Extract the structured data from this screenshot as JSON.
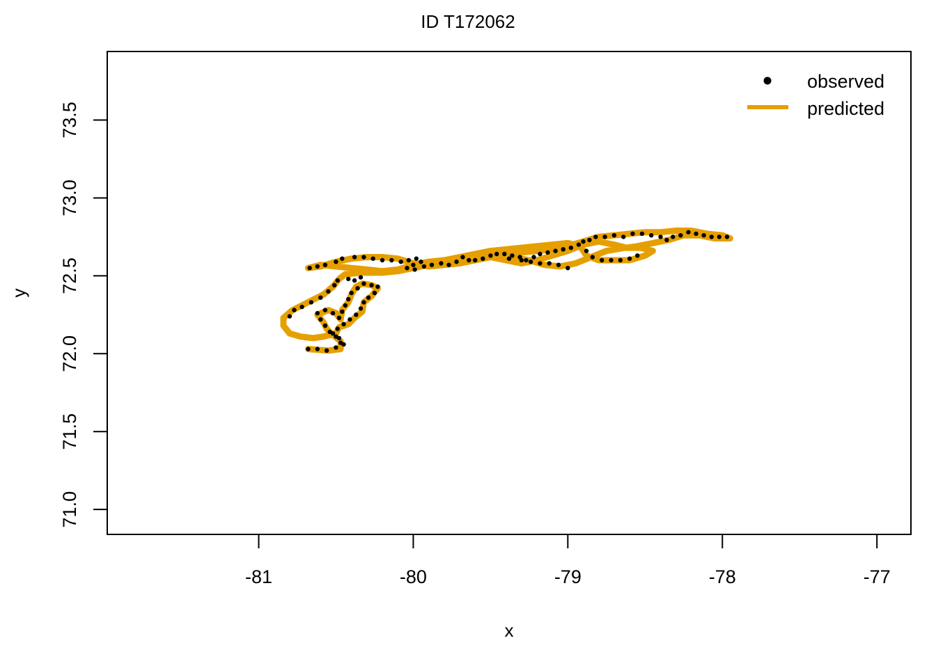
{
  "chart_data": {
    "type": "scatter",
    "title": "ID T172062",
    "xlabel": "x",
    "ylabel": "y",
    "xlim": [
      -81.98,
      -76.78
    ],
    "ylim": [
      70.84,
      73.94
    ],
    "xticks": [
      -81,
      -80,
      -79,
      -78,
      -77
    ],
    "xtick_labels": [
      "-81",
      "-80",
      "-79",
      "-78",
      "-77"
    ],
    "yticks": [
      71.0,
      71.5,
      72.0,
      72.5,
      73.0,
      73.5
    ],
    "ytick_labels": [
      "71.0",
      "71.5",
      "72.0",
      "72.5",
      "73.0",
      "73.5"
    ],
    "grid": false,
    "legend_position": "top-right",
    "legend": [
      {
        "label": "observed",
        "marker": "point",
        "color": "#000000"
      },
      {
        "label": "predicted",
        "marker": "line",
        "color": "#E69F00"
      }
    ],
    "series": [
      {
        "name": "predicted",
        "kind": "line",
        "color": "#E69F00",
        "points": [
          [
            -80.68,
            72.03
          ],
          [
            -80.55,
            72.02
          ],
          [
            -80.47,
            72.03
          ],
          [
            -80.47,
            72.08
          ],
          [
            -80.52,
            72.12
          ],
          [
            -80.56,
            72.16
          ],
          [
            -80.58,
            72.2
          ],
          [
            -80.62,
            72.25
          ],
          [
            -80.55,
            72.28
          ],
          [
            -80.5,
            72.26
          ],
          [
            -80.47,
            72.22
          ],
          [
            -80.46,
            72.28
          ],
          [
            -80.42,
            72.33
          ],
          [
            -80.4,
            72.38
          ],
          [
            -80.37,
            72.43
          ],
          [
            -80.33,
            72.45
          ],
          [
            -80.27,
            72.44
          ],
          [
            -80.23,
            72.42
          ],
          [
            -80.27,
            72.37
          ],
          [
            -80.32,
            72.33
          ],
          [
            -80.33,
            72.27
          ],
          [
            -80.38,
            72.23
          ],
          [
            -80.42,
            72.19
          ],
          [
            -80.48,
            72.17
          ],
          [
            -80.5,
            72.13
          ],
          [
            -80.58,
            72.11
          ],
          [
            -80.65,
            72.1
          ],
          [
            -80.73,
            72.11
          ],
          [
            -80.8,
            72.13
          ],
          [
            -80.84,
            72.18
          ],
          [
            -80.84,
            72.23
          ],
          [
            -80.78,
            72.28
          ],
          [
            -80.68,
            72.33
          ],
          [
            -80.58,
            72.38
          ],
          [
            -80.52,
            72.43
          ],
          [
            -80.48,
            72.48
          ],
          [
            -80.44,
            72.51
          ],
          [
            -80.34,
            72.52
          ],
          [
            -80.2,
            72.52
          ],
          [
            -80.1,
            72.53
          ],
          [
            -80.0,
            72.55
          ],
          [
            -79.9,
            72.57
          ],
          [
            -79.8,
            72.57
          ],
          [
            -79.7,
            72.58
          ],
          [
            -79.6,
            72.6
          ],
          [
            -79.5,
            72.63
          ],
          [
            -79.4,
            72.64
          ],
          [
            -79.3,
            72.65
          ],
          [
            -79.2,
            72.66
          ],
          [
            -79.1,
            72.67
          ],
          [
            -79.0,
            72.69
          ],
          [
            -78.9,
            72.72
          ],
          [
            -78.8,
            72.75
          ],
          [
            -78.7,
            72.76
          ],
          [
            -78.6,
            72.77
          ],
          [
            -78.5,
            72.78
          ],
          [
            -78.4,
            72.78
          ],
          [
            -78.3,
            72.79
          ],
          [
            -78.2,
            72.79
          ],
          [
            -78.1,
            72.77
          ],
          [
            -78.0,
            72.76
          ],
          [
            -77.95,
            72.74
          ],
          [
            -78.05,
            72.74
          ],
          [
            -78.15,
            72.76
          ],
          [
            -78.25,
            72.76
          ],
          [
            -78.35,
            72.73
          ],
          [
            -78.45,
            72.71
          ],
          [
            -78.55,
            72.69
          ],
          [
            -78.62,
            72.68
          ],
          [
            -78.7,
            72.7
          ],
          [
            -78.8,
            72.72
          ],
          [
            -78.9,
            72.7
          ],
          [
            -79.0,
            72.66
          ],
          [
            -79.1,
            72.63
          ],
          [
            -79.2,
            72.6
          ],
          [
            -79.3,
            72.58
          ],
          [
            -79.4,
            72.6
          ],
          [
            -79.5,
            72.62
          ],
          [
            -79.6,
            72.6
          ],
          [
            -79.7,
            72.59
          ],
          [
            -79.8,
            72.57
          ],
          [
            -79.9,
            72.56
          ],
          [
            -80.0,
            72.58
          ],
          [
            -80.1,
            72.61
          ],
          [
            -80.2,
            72.62
          ],
          [
            -80.3,
            72.62
          ],
          [
            -80.4,
            72.61
          ],
          [
            -80.5,
            72.59
          ],
          [
            -80.6,
            72.56
          ],
          [
            -80.68,
            72.55
          ],
          [
            -80.6,
            72.57
          ],
          [
            -80.5,
            72.56
          ],
          [
            -80.4,
            72.55
          ],
          [
            -80.3,
            72.54
          ],
          [
            -80.2,
            72.53
          ],
          [
            -80.1,
            72.54
          ],
          [
            -80.0,
            72.57
          ],
          [
            -79.9,
            72.59
          ],
          [
            -79.8,
            72.6
          ],
          [
            -79.7,
            72.62
          ],
          [
            -79.6,
            72.64
          ],
          [
            -79.5,
            72.66
          ],
          [
            -79.4,
            72.67
          ],
          [
            -79.3,
            72.68
          ],
          [
            -79.2,
            72.69
          ],
          [
            -79.1,
            72.7
          ],
          [
            -79.0,
            72.71
          ],
          [
            -78.92,
            72.69
          ],
          [
            -78.88,
            72.63
          ],
          [
            -78.8,
            72.6
          ],
          [
            -78.7,
            72.6
          ],
          [
            -78.6,
            72.6
          ],
          [
            -78.5,
            72.63
          ],
          [
            -78.45,
            72.66
          ],
          [
            -78.53,
            72.68
          ],
          [
            -78.63,
            72.68
          ],
          [
            -78.75,
            72.66
          ],
          [
            -78.85,
            72.62
          ],
          [
            -78.95,
            72.58
          ],
          [
            -79.05,
            72.56
          ],
          [
            -79.15,
            72.57
          ],
          [
            -79.25,
            72.6
          ],
          [
            -79.35,
            72.62
          ]
        ]
      },
      {
        "name": "observed",
        "kind": "points",
        "color": "#000000",
        "points": [
          [
            -80.68,
            72.03
          ],
          [
            -80.62,
            72.03
          ],
          [
            -80.56,
            72.02
          ],
          [
            -80.5,
            72.04
          ],
          [
            -80.47,
            72.07
          ],
          [
            -80.5,
            72.11
          ],
          [
            -80.54,
            72.14
          ],
          [
            -80.57,
            72.18
          ],
          [
            -80.6,
            72.22
          ],
          [
            -80.62,
            72.26
          ],
          [
            -80.57,
            72.28
          ],
          [
            -80.52,
            72.26
          ],
          [
            -80.48,
            72.23
          ],
          [
            -80.46,
            72.27
          ],
          [
            -80.44,
            72.31
          ],
          [
            -80.42,
            72.35
          ],
          [
            -80.4,
            72.39
          ],
          [
            -80.36,
            72.42
          ],
          [
            -80.32,
            72.45
          ],
          [
            -80.27,
            72.44
          ],
          [
            -80.23,
            72.43
          ],
          [
            -80.25,
            72.39
          ],
          [
            -80.29,
            72.36
          ],
          [
            -80.32,
            72.33
          ],
          [
            -80.34,
            72.29
          ],
          [
            -80.37,
            72.25
          ],
          [
            -80.41,
            72.22
          ],
          [
            -80.45,
            72.19
          ],
          [
            -80.49,
            72.16
          ],
          [
            -80.52,
            72.13
          ],
          [
            -80.48,
            72.1
          ],
          [
            -80.45,
            72.06
          ],
          [
            -80.8,
            72.24
          ],
          [
            -80.77,
            72.28
          ],
          [
            -80.72,
            72.3
          ],
          [
            -80.66,
            72.33
          ],
          [
            -80.6,
            72.36
          ],
          [
            -80.55,
            72.4
          ],
          [
            -80.51,
            72.44
          ],
          [
            -80.49,
            72.47
          ],
          [
            -80.42,
            72.48
          ],
          [
            -80.38,
            72.47
          ],
          [
            -80.34,
            72.49
          ],
          [
            -80.67,
            72.55
          ],
          [
            -80.62,
            72.56
          ],
          [
            -80.57,
            72.57
          ],
          [
            -80.5,
            72.59
          ],
          [
            -80.46,
            72.61
          ],
          [
            -80.38,
            72.62
          ],
          [
            -80.32,
            72.62
          ],
          [
            -80.26,
            72.61
          ],
          [
            -80.2,
            72.6
          ],
          [
            -80.14,
            72.6
          ],
          [
            -80.08,
            72.59
          ],
          [
            -80.03,
            72.6
          ],
          [
            -79.98,
            72.61
          ],
          [
            -79.95,
            72.59
          ],
          [
            -80.0,
            72.57
          ],
          [
            -80.04,
            72.55
          ],
          [
            -79.99,
            72.54
          ],
          [
            -79.93,
            72.56
          ],
          [
            -79.88,
            72.57
          ],
          [
            -79.82,
            72.58
          ],
          [
            -79.77,
            72.57
          ],
          [
            -79.72,
            72.59
          ],
          [
            -79.68,
            72.62
          ],
          [
            -79.64,
            72.6
          ],
          [
            -79.6,
            72.6
          ],
          [
            -79.55,
            72.61
          ],
          [
            -79.5,
            72.63
          ],
          [
            -79.46,
            72.64
          ],
          [
            -79.41,
            72.64
          ],
          [
            -79.36,
            72.63
          ],
          [
            -79.31,
            72.62
          ],
          [
            -79.27,
            72.6
          ],
          [
            -79.22,
            72.62
          ],
          [
            -79.18,
            72.64
          ],
          [
            -79.13,
            72.65
          ],
          [
            -79.08,
            72.66
          ],
          [
            -79.03,
            72.67
          ],
          [
            -78.98,
            72.68
          ],
          [
            -78.93,
            72.7
          ],
          [
            -78.9,
            72.72
          ],
          [
            -78.86,
            72.73
          ],
          [
            -78.82,
            72.75
          ],
          [
            -78.76,
            72.75
          ],
          [
            -78.7,
            72.76
          ],
          [
            -78.64,
            72.75
          ],
          [
            -78.58,
            72.77
          ],
          [
            -78.52,
            72.77
          ],
          [
            -78.46,
            72.76
          ],
          [
            -78.4,
            72.75
          ],
          [
            -78.36,
            72.73
          ],
          [
            -78.32,
            72.75
          ],
          [
            -78.27,
            72.76
          ],
          [
            -78.22,
            72.78
          ],
          [
            -78.17,
            72.77
          ],
          [
            -78.12,
            72.76
          ],
          [
            -78.07,
            72.75
          ],
          [
            -78.02,
            72.75
          ],
          [
            -77.97,
            72.75
          ],
          [
            -78.88,
            72.66
          ],
          [
            -78.84,
            72.62
          ],
          [
            -78.78,
            72.6
          ],
          [
            -78.72,
            72.6
          ],
          [
            -78.66,
            72.6
          ],
          [
            -78.6,
            72.61
          ],
          [
            -78.55,
            72.63
          ],
          [
            -79.0,
            72.55
          ],
          [
            -79.06,
            72.57
          ],
          [
            -79.12,
            72.58
          ],
          [
            -79.18,
            72.58
          ],
          [
            -79.24,
            72.59
          ],
          [
            -79.3,
            72.6
          ],
          [
            -79.38,
            72.61
          ]
        ]
      }
    ]
  }
}
